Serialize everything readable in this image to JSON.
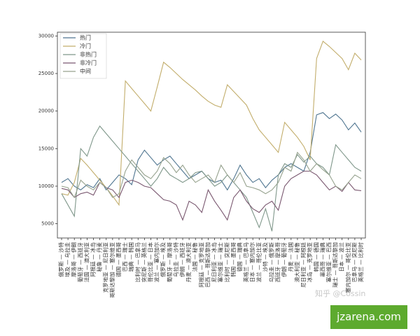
{
  "chart_data": {
    "type": "line",
    "categories": [
      "俄罗斯 — 沙特",
      "埃及 — 乌拉圭",
      "摩洛哥 — 伊朗",
      "葡萄牙 — 西班牙",
      "法国 — 澳大利亚",
      "阿根廷 — 冰岛",
      "秘鲁 — 丹麦",
      "克罗地亚 — 尼日利亚",
      "哥斯达黎加 — 塞尔维亚",
      "德国 — 墨西哥",
      "巴西 — 瑞士",
      "瑞典 — 韩国",
      "比利时 — 巴拿马",
      "突尼斯 — 英格兰",
      "哥伦比亚 — 日本",
      "波兰 — 塞内加尔",
      "俄罗斯 — 埃及",
      "葡萄牙 — 摩洛哥",
      "乌拉圭 — 沙特",
      "伊朗 — 西班牙",
      "丹麦 — 澳大利亚",
      "法国 — 秘鲁",
      "阿根廷 — 克罗地亚",
      "巴西 — 哥斯达黎加",
      "尼日利亚 — 冰岛",
      "塞尔维亚 — 瑞士",
      "比利时 — 突尼斯",
      "韩国 — 墨西哥",
      "德国 — 瑞典",
      "英格兰 — 巴拿马",
      "日本 — 塞内加尔",
      "波兰 — 哥伦比亚",
      "沙特 — 埃及",
      "乌拉圭 — 俄罗斯",
      "西班牙 — 摩洛哥",
      "伊朗 — 葡萄牙",
      "丹麦 — 法国",
      "澳大利亚 — 秘鲁",
      "尼日利亚 — 阿根廷",
      "冰岛 — 克罗地亚",
      "韩国 — 德国",
      "墨西哥 — 瑞典",
      "塞尔维亚 — 巴西",
      "瑞士 — 哥斯达黎加",
      "日本 — 波兰",
      "塞内加尔 — 哥伦比亚",
      "巴拿马 — 突尼斯",
      "英格兰 — 比利时"
    ],
    "series": [
      {
        "name": "热门",
        "color": "#4f7590",
        "values": [
          10500,
          11000,
          10000,
          9500,
          10200,
          9800,
          11000,
          9500,
          10500,
          11500,
          11000,
          10200,
          13500,
          14800,
          13800,
          12800,
          13500,
          14000,
          13000,
          12000,
          11000,
          11500,
          12000,
          11000,
          10500,
          10800,
          9500,
          11000,
          12800,
          11500,
          10500,
          11000,
          9800,
          10800,
          11500,
          12500,
          13000,
          12500,
          12000,
          14500,
          19500,
          19800,
          19000,
          19600,
          18800,
          17500,
          18400,
          17200
        ]
      },
      {
        "name": "冷门",
        "color": "#c2ad6b",
        "values": [
          9000,
          8800,
          10500,
          13700,
          12800,
          11800,
          10800,
          9800,
          8700,
          7500,
          24000,
          23000,
          22000,
          21000,
          20000,
          23200,
          26500,
          25800,
          25000,
          24200,
          23500,
          22800,
          22000,
          21300,
          20800,
          20500,
          23500,
          22600,
          21700,
          20800,
          19000,
          17500,
          16500,
          15500,
          14500,
          18500,
          17500,
          16500,
          15300,
          13500,
          27000,
          29300,
          28600,
          27800,
          27000,
          25500,
          27700,
          26800
        ]
      },
      {
        "name": "非热门",
        "color": "#7f978a",
        "values": [
          9000,
          7500,
          6000,
          15000,
          14000,
          16500,
          18000,
          17000,
          16000,
          15000,
          14000,
          13000,
          12000,
          11000,
          10000,
          11000,
          12500,
          11500,
          11000,
          10500,
          11000,
          11800,
          12000,
          11000,
          10000,
          10500,
          11500,
          10500,
          9500,
          8500,
          6500,
          4500,
          7000,
          4000,
          11500,
          13000,
          12500,
          14200,
          13200,
          14000,
          13000,
          12500,
          11500,
          15500,
          14500,
          13500,
          12500,
          12000
        ]
      },
      {
        "name": "非冷门",
        "color": "#7a5870",
        "values": [
          9700,
          9500,
          8500,
          9000,
          9200,
          8800,
          10500,
          9800,
          9500,
          8500,
          10500,
          10800,
          10500,
          10000,
          9800,
          9000,
          8200,
          8000,
          7500,
          5500,
          8000,
          7500,
          6500,
          9500,
          8000,
          6800,
          5500,
          8500,
          9500,
          8000,
          7000,
          6500,
          7500,
          8000,
          6800,
          10000,
          11000,
          11500,
          12000,
          12000,
          11500,
          10500,
          9500,
          10000,
          9300,
          10500,
          9500,
          9400
        ]
      },
      {
        "name": "中间",
        "color": "#96a28e",
        "values": [
          10000,
          9800,
          8500,
          10800,
          10000,
          9500,
          10500,
          9800,
          8500,
          9000,
          12000,
          13500,
          12500,
          11500,
          11000,
          12000,
          13800,
          13000,
          11800,
          12800,
          11500,
          10500,
          11000,
          11500,
          10500,
          12800,
          11500,
          10500,
          11800,
          10000,
          9800,
          9500,
          9000,
          9500,
          10500,
          12500,
          12000,
          14500,
          13500,
          12000,
          13000,
          12200,
          11500,
          10000,
          9500,
          10500,
          11500,
          11000
        ]
      }
    ],
    "ylim": [
      3100,
      30500
    ],
    "yticks": [
      5000,
      10000,
      15000,
      20000,
      25000,
      30000
    ],
    "legend": "upper left"
  },
  "watermark": "知乎 @Cossin",
  "badge": "jzarena.com"
}
